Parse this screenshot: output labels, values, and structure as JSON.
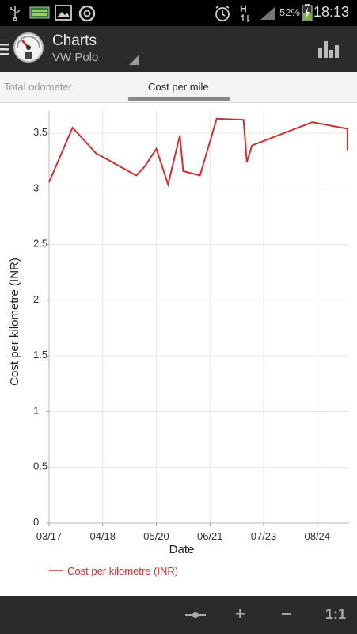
{
  "status_bar": {
    "battery": "52%",
    "time": "18:13",
    "network": "H",
    "icons": [
      "usb-icon",
      "sd-card-icon",
      "gallery-icon",
      "app-icon",
      "alarm-icon",
      "data-arrows-icon",
      "signal-icon",
      "battery-charging-icon"
    ]
  },
  "action_bar": {
    "title": "Charts",
    "subtitle": "VW Polo",
    "icons": [
      "menu-icon",
      "fuel-gauge-icon",
      "spinner-dropdown-icon",
      "bar-chart-icon"
    ]
  },
  "tabs": [
    {
      "label": "Total odometer",
      "selected": false
    },
    {
      "label": "Cost per mile",
      "selected": true
    }
  ],
  "colors": {
    "accent": "#d32f2f",
    "bar_bg": "#2b2b2b"
  },
  "chart_data": {
    "type": "line",
    "xlabel": "Date",
    "ylabel": "Cost per kilometre (INR)",
    "x_ticks": [
      "03/17",
      "04/18",
      "05/20",
      "06/21",
      "07/23",
      "08/24"
    ],
    "y_ticks": [
      "0",
      "0.5",
      "1",
      "1.5",
      "2",
      "2.5",
      "3",
      "3.5"
    ],
    "ylim": [
      0,
      3.7
    ],
    "xlim": [
      "03/17",
      "09/12"
    ],
    "legend": "bottom-left",
    "grid": true,
    "series": [
      {
        "name": "Cost per kilometre (INR)",
        "color": "#d32f2f",
        "x": [
          "03/17",
          "03/31",
          "04/14",
          "05/08",
          "05/13",
          "05/20",
          "05/27",
          "06/03",
          "06/05",
          "06/15",
          "06/25",
          "07/11",
          "07/13",
          "07/16",
          "08/21",
          "09/11",
          "09/11"
        ],
        "y": [
          3.06,
          3.55,
          3.32,
          3.12,
          3.2,
          3.36,
          3.04,
          3.48,
          3.16,
          3.12,
          3.63,
          3.62,
          3.24,
          3.39,
          3.6,
          3.54,
          3.35
        ]
      }
    ]
  },
  "bottom_bar": {
    "buttons": [
      {
        "name": "pan-icon",
        "label": "-●-"
      },
      {
        "name": "zoom-in-button",
        "label": "+"
      },
      {
        "name": "zoom-out-button",
        "label": "−"
      },
      {
        "name": "zoom-reset-button",
        "label": "1:1"
      }
    ]
  }
}
